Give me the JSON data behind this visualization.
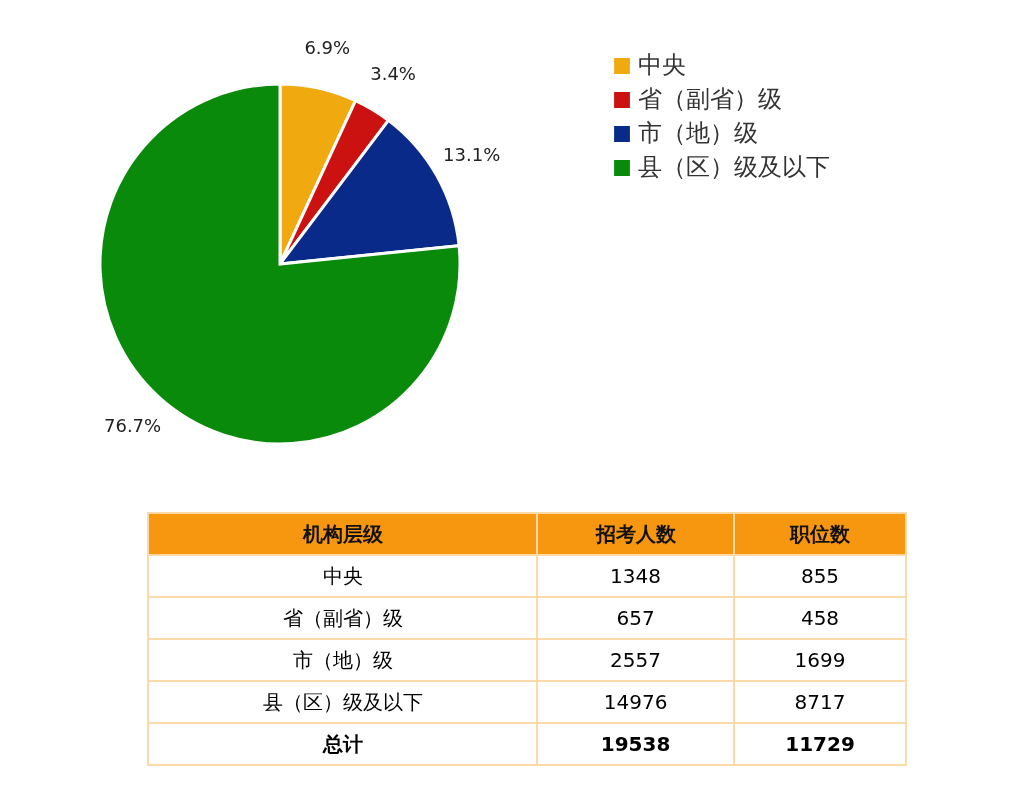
{
  "chart_data": [
    {
      "type": "pie",
      "categories": [
        "中央",
        "省（副省）级",
        "市（地）级",
        "县（区）级及以下"
      ],
      "values": [
        6.9,
        3.4,
        13.1,
        76.7
      ],
      "colors": [
        "#f0aa0f",
        "#cc1111",
        "#0a2a8a",
        "#0a8a0a"
      ],
      "value_labels": [
        "6.9%",
        "3.4%",
        "13.1%",
        "76.7%"
      ],
      "legend": "right"
    },
    {
      "type": "other",
      "xlabel": "机构层级",
      "categories": [
        "中央",
        "省（副省）级",
        "市（地）级",
        "县（区）级及以下",
        "总计"
      ],
      "series": [
        {
          "name": "招考人数",
          "values": [
            1348,
            657,
            2557,
            14976,
            19538
          ]
        },
        {
          "name": "职位数",
          "values": [
            855,
            458,
            1699,
            8717,
            11729
          ]
        }
      ],
      "data_labels": true
    }
  ]
}
